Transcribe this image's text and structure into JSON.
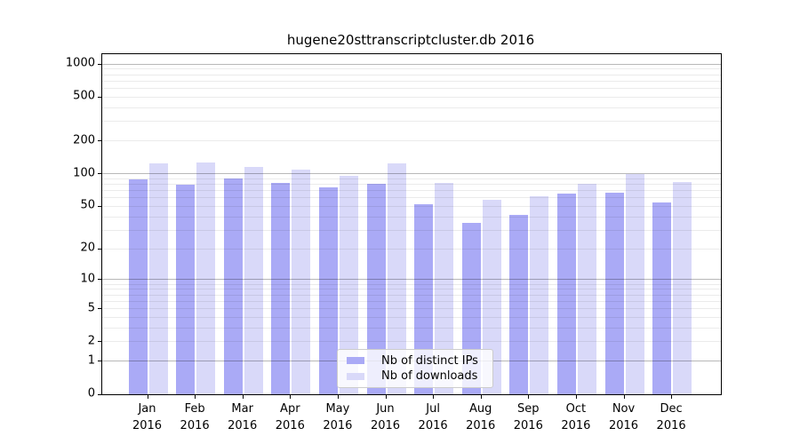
{
  "chart_data": {
    "type": "bar",
    "title": "hugene20sttranscriptcluster.db 2016",
    "year": "2016",
    "categories": [
      "Jan",
      "Feb",
      "Mar",
      "Apr",
      "May",
      "Jun",
      "Jul",
      "Aug",
      "Sep",
      "Oct",
      "Nov",
      "Dec"
    ],
    "series": [
      {
        "name": "Nb of distinct IPs",
        "color": "#aaaaf6",
        "values": [
          88,
          79,
          90,
          82,
          75,
          80,
          52,
          35,
          42,
          66,
          67,
          54
        ]
      },
      {
        "name": "Nb of downloads",
        "color": "#d9d9f9",
        "values": [
          125,
          127,
          115,
          110,
          95,
          125,
          82,
          57,
          62,
          80,
          99,
          84
        ]
      }
    ],
    "xlabel": "",
    "ylabel": "",
    "yscale": "log1p",
    "ylim": [
      0,
      1230
    ],
    "y_ticks": [
      1000,
      500,
      200,
      100,
      50,
      20,
      10,
      5,
      2,
      1,
      0
    ],
    "grid": "horizontal, major lines at 1/10/100/1000, faint minor log lines",
    "legend_position": "lower center",
    "colors": {
      "axis": "#000000",
      "major_grid": "#b8b8b8",
      "minor_grid": "#ebebeb",
      "background": "#ffffff"
    }
  }
}
